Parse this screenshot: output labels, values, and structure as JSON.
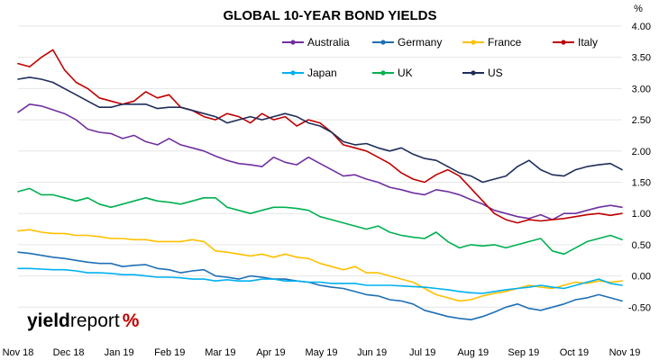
{
  "chart_data": {
    "type": "line",
    "title": "GLOBAL 10-YEAR BOND YIELDS",
    "unit": "%",
    "ylim": [
      -1.0,
      4.0
    ],
    "yticks": [
      "4.00",
      "3.50",
      "3.00",
      "2.50",
      "2.00",
      "1.50",
      "1.00",
      "0.50",
      "0.00",
      "-0.50"
    ],
    "x_tick_labels": [
      "Nov 18",
      "Dec 18",
      "Jan 19",
      "Feb 19",
      "Mar 19",
      "Apr 19",
      "May 19",
      "Jun 19",
      "Jul 19",
      "Aug 19",
      "Sep 19",
      "Oct 19",
      "Nov 19"
    ],
    "x_index": [
      0,
      1,
      2,
      3,
      4,
      5,
      6,
      7,
      8,
      9,
      10,
      11,
      12,
      13,
      14,
      15,
      16,
      17,
      18,
      19,
      20,
      21,
      22,
      23,
      24,
      25,
      26,
      27,
      28,
      29,
      30,
      31,
      32,
      33,
      34,
      35,
      36,
      37,
      38,
      39,
      40,
      41,
      42,
      43,
      44,
      45,
      46,
      47,
      48,
      49,
      50,
      51,
      52
    ],
    "grid": "horizontal",
    "legend_position": "top-right",
    "series": [
      {
        "name": "Australia",
        "color": "#7030a0",
        "values": [
          2.62,
          2.75,
          2.72,
          2.66,
          2.6,
          2.5,
          2.35,
          2.3,
          2.28,
          2.2,
          2.25,
          2.15,
          2.1,
          2.2,
          2.1,
          2.05,
          2.0,
          1.92,
          1.85,
          1.8,
          1.78,
          1.75,
          1.9,
          1.82,
          1.78,
          1.9,
          1.8,
          1.7,
          1.6,
          1.62,
          1.55,
          1.5,
          1.42,
          1.38,
          1.33,
          1.3,
          1.38,
          1.35,
          1.3,
          1.22,
          1.15,
          1.05,
          1.0,
          0.95,
          0.92,
          0.98,
          0.9,
          1.0,
          1.0,
          1.05,
          1.1,
          1.13,
          1.1
        ]
      },
      {
        "name": "Germany",
        "color": "#1f6fb5",
        "values": [
          0.38,
          0.36,
          0.33,
          0.3,
          0.28,
          0.25,
          0.22,
          0.2,
          0.2,
          0.15,
          0.17,
          0.18,
          0.12,
          0.1,
          0.05,
          0.08,
          0.1,
          0.0,
          -0.02,
          -0.05,
          0.0,
          -0.02,
          -0.05,
          -0.05,
          -0.08,
          -0.1,
          -0.15,
          -0.18,
          -0.2,
          -0.25,
          -0.3,
          -0.32,
          -0.38,
          -0.4,
          -0.45,
          -0.55,
          -0.6,
          -0.65,
          -0.68,
          -0.7,
          -0.65,
          -0.58,
          -0.5,
          -0.45,
          -0.52,
          -0.55,
          -0.5,
          -0.45,
          -0.38,
          -0.35,
          -0.3,
          -0.35,
          -0.4
        ]
      },
      {
        "name": "France",
        "color": "#ffc000",
        "values": [
          0.72,
          0.74,
          0.7,
          0.68,
          0.68,
          0.65,
          0.65,
          0.63,
          0.6,
          0.6,
          0.58,
          0.58,
          0.55,
          0.55,
          0.55,
          0.58,
          0.55,
          0.4,
          0.38,
          0.35,
          0.32,
          0.35,
          0.3,
          0.35,
          0.3,
          0.28,
          0.2,
          0.15,
          0.1,
          0.15,
          0.05,
          0.05,
          0.0,
          -0.05,
          -0.1,
          -0.2,
          -0.3,
          -0.35,
          -0.4,
          -0.38,
          -0.32,
          -0.28,
          -0.25,
          -0.2,
          -0.15,
          -0.18,
          -0.2,
          -0.15,
          -0.1,
          -0.12,
          -0.08,
          -0.1,
          -0.08
        ]
      },
      {
        "name": "Italy",
        "color": "#c00000",
        "values": [
          3.4,
          3.35,
          3.5,
          3.62,
          3.3,
          3.1,
          3.0,
          2.85,
          2.8,
          2.75,
          2.8,
          2.95,
          2.85,
          2.9,
          2.7,
          2.65,
          2.55,
          2.5,
          2.6,
          2.55,
          2.45,
          2.6,
          2.5,
          2.55,
          2.4,
          2.5,
          2.45,
          2.3,
          2.1,
          2.05,
          2.0,
          1.9,
          1.8,
          1.65,
          1.55,
          1.5,
          1.62,
          1.7,
          1.6,
          1.4,
          1.2,
          1.0,
          0.9,
          0.85,
          0.9,
          0.88,
          0.9,
          0.92,
          0.95,
          0.98,
          1.0,
          0.97,
          1.0
        ]
      },
      {
        "name": "Japan",
        "color": "#00b0f0",
        "values": [
          0.12,
          0.12,
          0.11,
          0.1,
          0.1,
          0.08,
          0.05,
          0.05,
          0.04,
          0.02,
          0.02,
          0.0,
          -0.02,
          -0.02,
          -0.03,
          -0.05,
          -0.05,
          -0.08,
          -0.06,
          -0.08,
          -0.08,
          -0.05,
          -0.05,
          -0.08,
          -0.08,
          -0.1,
          -0.1,
          -0.12,
          -0.12,
          -0.12,
          -0.15,
          -0.15,
          -0.15,
          -0.16,
          -0.17,
          -0.18,
          -0.2,
          -0.22,
          -0.25,
          -0.27,
          -0.28,
          -0.25,
          -0.22,
          -0.2,
          -0.18,
          -0.15,
          -0.18,
          -0.2,
          -0.15,
          -0.1,
          -0.05,
          -0.12,
          -0.15
        ]
      },
      {
        "name": "UK",
        "color": "#00b050",
        "values": [
          1.35,
          1.4,
          1.3,
          1.3,
          1.25,
          1.2,
          1.25,
          1.15,
          1.1,
          1.15,
          1.2,
          1.25,
          1.2,
          1.18,
          1.15,
          1.2,
          1.25,
          1.25,
          1.1,
          1.05,
          1.0,
          1.05,
          1.1,
          1.1,
          1.08,
          1.05,
          0.95,
          0.9,
          0.85,
          0.8,
          0.75,
          0.8,
          0.7,
          0.65,
          0.62,
          0.6,
          0.7,
          0.55,
          0.45,
          0.5,
          0.48,
          0.5,
          0.45,
          0.5,
          0.55,
          0.6,
          0.4,
          0.35,
          0.45,
          0.55,
          0.6,
          0.65,
          0.58
        ]
      },
      {
        "name": "US",
        "color": "#1f2d5a",
        "values": [
          3.15,
          3.18,
          3.15,
          3.1,
          3.0,
          2.9,
          2.8,
          2.7,
          2.7,
          2.75,
          2.75,
          2.75,
          2.68,
          2.7,
          2.7,
          2.65,
          2.6,
          2.55,
          2.45,
          2.5,
          2.55,
          2.5,
          2.55,
          2.6,
          2.55,
          2.45,
          2.4,
          2.3,
          2.15,
          2.1,
          2.12,
          2.05,
          2.0,
          2.05,
          1.95,
          1.88,
          1.85,
          1.75,
          1.65,
          1.6,
          1.5,
          1.55,
          1.6,
          1.75,
          1.85,
          1.7,
          1.62,
          1.6,
          1.7,
          1.75,
          1.78,
          1.8,
          1.7
        ]
      }
    ]
  },
  "legend_layout": [
    [
      "Australia",
      "Germany",
      "France",
      "Italy"
    ],
    [
      "Japan",
      "UK",
      "US"
    ]
  ],
  "logo": {
    "part1": "yield",
    "part2": "report",
    "part3": "%"
  }
}
